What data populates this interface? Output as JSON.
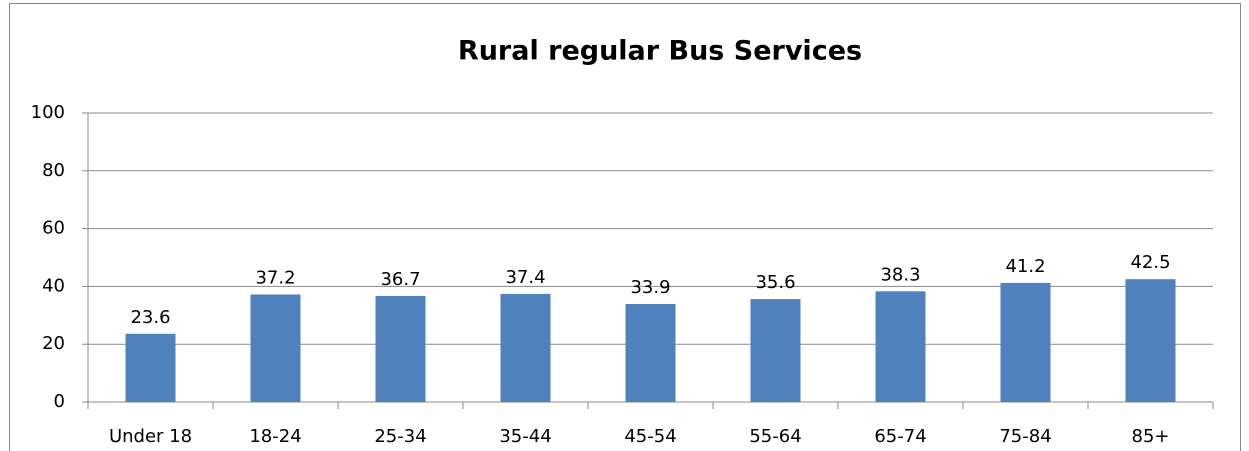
{
  "chart_data": {
    "type": "bar",
    "title": "Rural regular Bus Services",
    "categories": [
      "Under 18",
      "18-24",
      "25-34",
      "35-44",
      "45-54",
      "55-64",
      "65-74",
      "75-84",
      "85+"
    ],
    "values": [
      23.6,
      37.2,
      36.7,
      37.4,
      33.9,
      35.6,
      38.3,
      41.2,
      42.5
    ],
    "color": "#4f81bd",
    "ylim": [
      0,
      100
    ],
    "yticks": [
      0,
      20,
      40,
      60,
      80,
      100
    ],
    "grid": true,
    "data_labels": true
  }
}
